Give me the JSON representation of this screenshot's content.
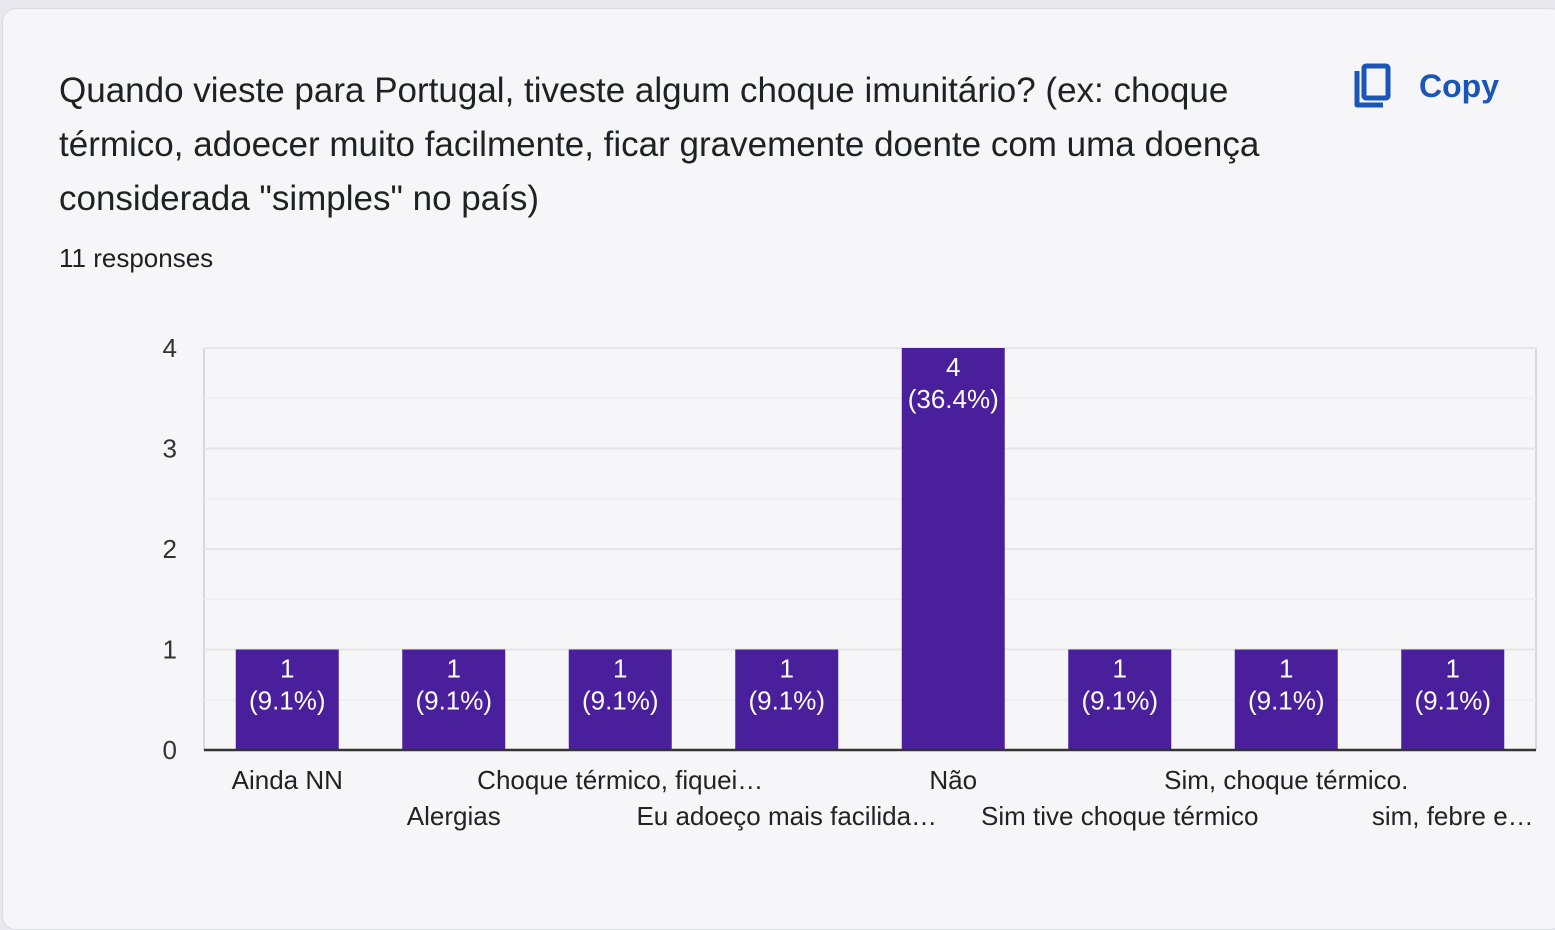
{
  "question": {
    "title": "Quando vieste para Portugal, tiveste algum choque imunitário? (ex: choque térmico, adoecer muito facilmente, ficar gravemente doente com uma doença considerada \"simples\" no país)",
    "responses": "11 responses"
  },
  "actions": {
    "copy_label": "Copy",
    "copy_icon": "copy-icon"
  },
  "colors": {
    "bar": "#4a1f9b",
    "accent": "#1a56b8",
    "grid": "#e6e6e6",
    "axis": "#333333"
  },
  "chart_data": {
    "type": "bar",
    "categories": [
      "Ainda NN",
      "Alergias",
      "Choque térmico, fiquei…",
      "Eu adoeço mais facilida…",
      "Não",
      "Sim tive choque térmico",
      "Sim, choque térmico.",
      "sim, febre e…"
    ],
    "values": [
      1,
      1,
      1,
      1,
      4,
      1,
      1,
      1
    ],
    "data_labels": [
      [
        "1",
        "(9.1%)"
      ],
      [
        "1",
        "(9.1%)"
      ],
      [
        "1",
        "(9.1%)"
      ],
      [
        "1",
        "(9.1%)"
      ],
      [
        "4",
        "(36.4%)"
      ],
      [
        "1",
        "(9.1%)"
      ],
      [
        "1",
        "(9.1%)"
      ],
      [
        "1",
        "(9.1%)"
      ]
    ],
    "yticks": [
      "0",
      "1",
      "2",
      "3",
      "4"
    ],
    "ylim": [
      0,
      4
    ],
    "grid": true
  }
}
